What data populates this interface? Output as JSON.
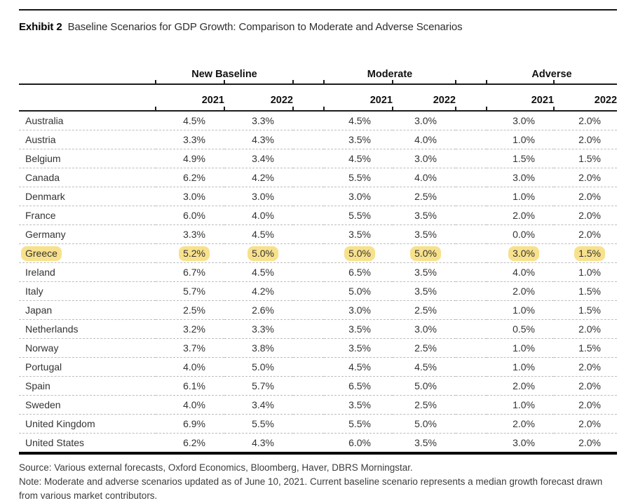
{
  "exhibit": {
    "label": "Exhibit 2",
    "title": "Baseline Scenarios for GDP Growth: Comparison to Moderate and Adverse Scenarios"
  },
  "table": {
    "group_headers": [
      "New Baseline",
      "Moderate",
      "Adverse"
    ],
    "year_headers": [
      "2021",
      "2022",
      "2021",
      "2022",
      "2021",
      "2022"
    ],
    "rows": [
      {
        "country": "Australia",
        "values": [
          "4.5%",
          "3.3%",
          "4.5%",
          "3.0%",
          "3.0%",
          "2.0%"
        ],
        "highlight": false
      },
      {
        "country": "Austria",
        "values": [
          "3.3%",
          "4.3%",
          "3.5%",
          "4.0%",
          "1.0%",
          "2.0%"
        ],
        "highlight": false
      },
      {
        "country": "Belgium",
        "values": [
          "4.9%",
          "3.4%",
          "4.5%",
          "3.0%",
          "1.5%",
          "1.5%"
        ],
        "highlight": false
      },
      {
        "country": "Canada",
        "values": [
          "6.2%",
          "4.2%",
          "5.5%",
          "4.0%",
          "3.0%",
          "2.0%"
        ],
        "highlight": false
      },
      {
        "country": "Denmark",
        "values": [
          "3.0%",
          "3.0%",
          "3.0%",
          "2.5%",
          "1.0%",
          "2.0%"
        ],
        "highlight": false
      },
      {
        "country": "France",
        "values": [
          "6.0%",
          "4.0%",
          "5.5%",
          "3.5%",
          "2.0%",
          "2.0%"
        ],
        "highlight": false
      },
      {
        "country": "Germany",
        "values": [
          "3.3%",
          "4.5%",
          "3.5%",
          "3.5%",
          "0.0%",
          "2.0%"
        ],
        "highlight": false
      },
      {
        "country": "Greece",
        "values": [
          "5.2%",
          "5.0%",
          "5.0%",
          "5.0%",
          "3.0%",
          "1.5%"
        ],
        "highlight": true
      },
      {
        "country": "Ireland",
        "values": [
          "6.7%",
          "4.5%",
          "6.5%",
          "3.5%",
          "4.0%",
          "1.0%"
        ],
        "highlight": false
      },
      {
        "country": "Italy",
        "values": [
          "5.7%",
          "4.2%",
          "5.0%",
          "3.5%",
          "2.0%",
          "1.5%"
        ],
        "highlight": false
      },
      {
        "country": "Japan",
        "values": [
          "2.5%",
          "2.6%",
          "3.0%",
          "2.5%",
          "1.0%",
          "1.5%"
        ],
        "highlight": false
      },
      {
        "country": "Netherlands",
        "values": [
          "3.2%",
          "3.3%",
          "3.5%",
          "3.0%",
          "0.5%",
          "2.0%"
        ],
        "highlight": false
      },
      {
        "country": "Norway",
        "values": [
          "3.7%",
          "3.8%",
          "3.5%",
          "2.5%",
          "1.0%",
          "1.5%"
        ],
        "highlight": false
      },
      {
        "country": "Portugal",
        "values": [
          "4.0%",
          "5.0%",
          "4.5%",
          "4.5%",
          "1.0%",
          "2.0%"
        ],
        "highlight": false
      },
      {
        "country": "Spain",
        "values": [
          "6.1%",
          "5.7%",
          "6.5%",
          "5.0%",
          "2.0%",
          "2.0%"
        ],
        "highlight": false
      },
      {
        "country": "Sweden",
        "values": [
          "4.0%",
          "3.4%",
          "3.5%",
          "2.5%",
          "1.0%",
          "2.0%"
        ],
        "highlight": false
      },
      {
        "country": "United Kingdom",
        "values": [
          "6.9%",
          "5.5%",
          "5.5%",
          "5.0%",
          "2.0%",
          "2.0%"
        ],
        "highlight": false
      },
      {
        "country": "United States",
        "values": [
          "6.2%",
          "4.3%",
          "6.0%",
          "3.5%",
          "3.0%",
          "2.0%"
        ],
        "highlight": false
      }
    ]
  },
  "notes": {
    "source": "Source: Various external forecasts, Oxford Economics, Bloomberg, Haver, DBRS Morningstar.",
    "note": "Note: Moderate and adverse scenarios updated as of June 10, 2021. Current baseline scenario represents a median growth forecast drawn from various market contributors."
  },
  "colors": {
    "highlight": "#F8E18C",
    "rule": "#1c1c1c",
    "row_divider": "#bdbdbd"
  }
}
